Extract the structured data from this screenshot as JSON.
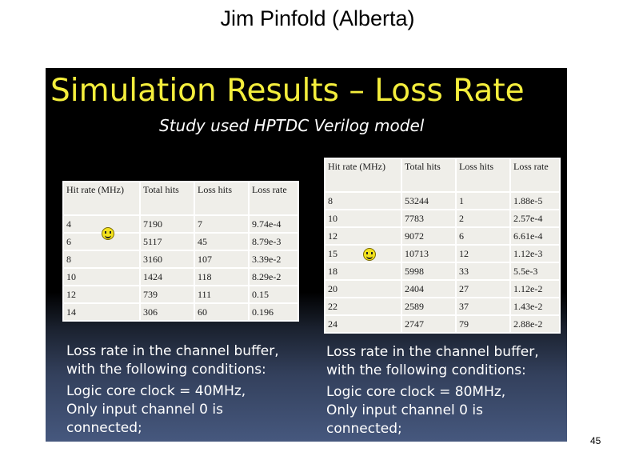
{
  "page_title": "Jim Pinfold (Alberta)",
  "slide": {
    "title": "Simulation Results – Loss Rate",
    "subtitle": "Study used  HPTDC Verilog model"
  },
  "table1": {
    "headers": [
      "Hit rate (MHz)",
      "Total hits",
      "Loss hits",
      "Loss rate"
    ],
    "rows": [
      [
        "4",
        "7190",
        "7",
        "9.74e-4"
      ],
      [
        "6",
        "5117",
        "45",
        "8.79e-3"
      ],
      [
        "8",
        "3160",
        "107",
        "3.39e-2"
      ],
      [
        "10",
        "1424",
        "118",
        "8.29e-2"
      ],
      [
        "12",
        "739",
        "111",
        "0.15"
      ],
      [
        "14",
        "306",
        "60",
        "0.196"
      ]
    ]
  },
  "table2": {
    "headers": [
      "Hit rate (MHz)",
      "Total hits",
      "Loss hits",
      "Loss rate"
    ],
    "rows": [
      [
        "8",
        "53244",
        "1",
        "1.88e-5"
      ],
      [
        "10",
        "7783",
        "2",
        "2.57e-4"
      ],
      [
        "12",
        "9072",
        "6",
        "6.61e-4"
      ],
      [
        "15",
        "10713",
        "12",
        "1.12e-3"
      ],
      [
        "18",
        "5998",
        "33",
        "5.5e-3"
      ],
      [
        "20",
        "2404",
        "27",
        "1.12e-2"
      ],
      [
        "22",
        "2589",
        "37",
        "1.43e-2"
      ],
      [
        "24",
        "2747",
        "79",
        "2.88e-2"
      ]
    ]
  },
  "note1": {
    "lines": [
      "Loss rate in the channel buffer,",
      "with the following conditions:",
      "Logic core clock = 40MHz,",
      "Only input channel 0 is",
      "connected;"
    ]
  },
  "note2": {
    "lines": [
      "Loss rate in the channel buffer,",
      "with the following conditions:",
      "Logic core clock = 80MHz,",
      "Only input channel 0 is",
      "connected;"
    ]
  },
  "icons": {
    "smiley": "smiley-face-icon"
  },
  "colors": {
    "title": "#f4ee3c",
    "slide_background_top": "#000000",
    "slide_background_bottom": "#46587e"
  },
  "page_number": "45"
}
